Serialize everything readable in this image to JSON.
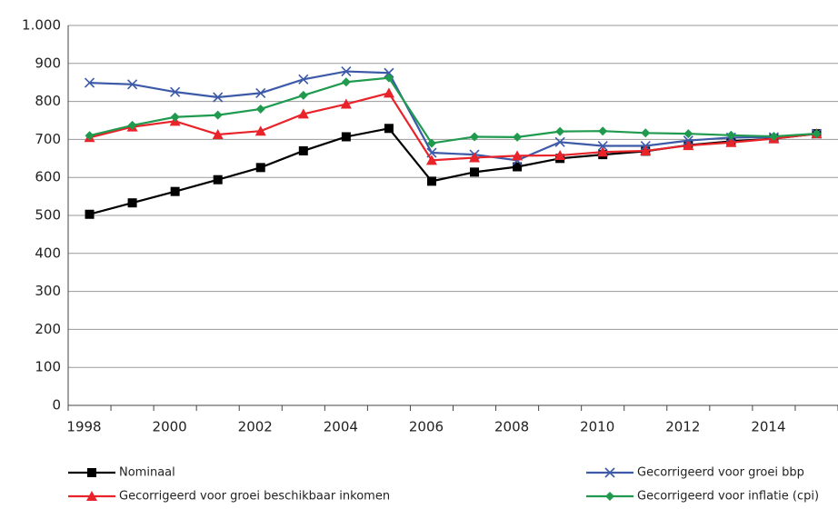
{
  "chart_data": {
    "type": "line",
    "categories": [
      "1998",
      null,
      "2000",
      null,
      "2002",
      null,
      "2004",
      null,
      "2006",
      null,
      "2008",
      null,
      "2010",
      null,
      "2012",
      null,
      "2014",
      null
    ],
    "series": [
      {
        "name": "Nominaal",
        "color": "#000000",
        "marker": "square",
        "values": [
          503,
          533,
          563,
          594,
          626,
          670,
          707,
          729,
          590,
          614,
          628,
          650,
          660,
          669,
          685,
          695,
          702,
          715
        ]
      },
      {
        "name": "Gecorrigeerd voor groei bbp",
        "color": "#3c5aa8",
        "marker": "x",
        "values": [
          849,
          845,
          825,
          811,
          822,
          858,
          879,
          875,
          665,
          660,
          645,
          693,
          683,
          683,
          697,
          705,
          706,
          715
        ]
      },
      {
        "name": "Gecorrigeerd voor groei beschikbaar inkomen",
        "color": "#e8232a",
        "marker": "triangle",
        "values": [
          705,
          733,
          748,
          713,
          722,
          767,
          793,
          822,
          645,
          652,
          657,
          658,
          667,
          670,
          684,
          692,
          702,
          715
        ]
      },
      {
        "name": "Gecorrigeerd voor inflatie (cpi)",
        "color": "#1f9a4e",
        "marker": "diamond",
        "values": [
          710,
          737,
          759,
          764,
          780,
          816,
          851,
          862,
          690,
          707,
          706,
          721,
          722,
          717,
          715,
          711,
          708,
          715
        ]
      }
    ],
    "ylim": [
      0,
      1000
    ],
    "yticks": [
      0,
      100,
      200,
      300,
      400,
      500,
      600,
      700,
      800,
      900,
      {
        "value": 1000,
        "label": "1.000"
      }
    ],
    "grid": true,
    "legend": "bottom"
  }
}
